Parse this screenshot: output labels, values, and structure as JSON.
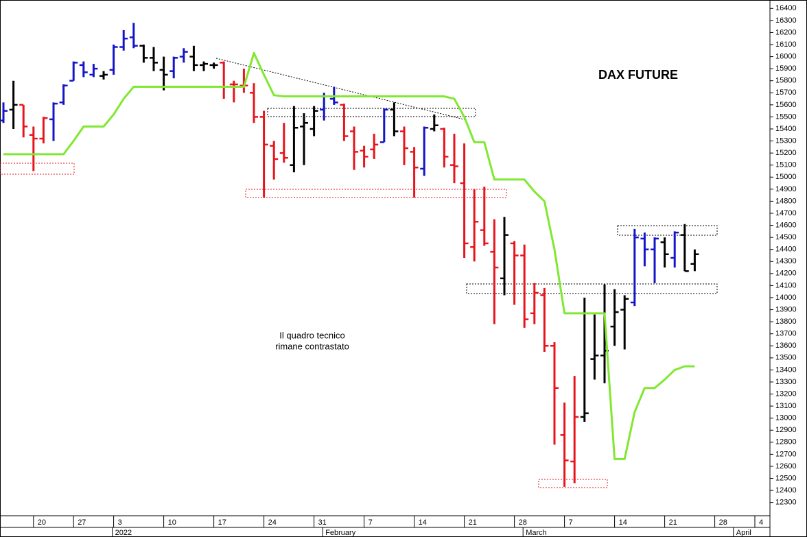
{
  "chart_data": {
    "type": "ohlc",
    "title": "DAX FUTURE",
    "annotation": [
      "Il quadro tecnico",
      "rimane contrastato"
    ],
    "categories": [
      null,
      null,
      null,
      "20",
      null,
      null,
      null,
      "27",
      null,
      null,
      null,
      "3",
      null,
      null,
      null,
      null,
      "10",
      null,
      null,
      null,
      null,
      "17",
      null,
      null,
      null,
      null,
      "24",
      null,
      null,
      null,
      null,
      "31",
      null,
      null,
      null,
      null,
      "7",
      null,
      null,
      null,
      null,
      "14",
      null,
      null,
      null,
      null,
      "21",
      null,
      null,
      null,
      null,
      "28",
      null,
      null,
      null,
      null,
      "7",
      null,
      null,
      null,
      null,
      "14",
      null,
      null,
      null,
      null,
      "21",
      null,
      null,
      null,
      null,
      "28",
      null,
      null,
      null,
      "4"
    ],
    "month_labels": [
      null,
      null,
      null,
      null,
      null,
      null,
      null,
      null,
      null,
      null,
      null,
      "2022",
      null,
      null,
      null,
      null,
      null,
      null,
      null,
      null,
      null,
      null,
      null,
      null,
      null,
      null,
      null,
      null,
      null,
      null,
      null,
      null,
      "February",
      null,
      null,
      null,
      null,
      null,
      null,
      null,
      null,
      null,
      null,
      null,
      null,
      null,
      null,
      null,
      null,
      null,
      null,
      null,
      "March",
      null,
      null,
      null,
      null,
      null,
      null,
      null,
      null,
      null,
      null,
      null,
      null,
      null,
      null,
      null,
      null,
      null,
      null,
      null,
      null,
      "April"
    ],
    "open": [
      15470,
      15560,
      15600,
      15350,
      15320,
      15480,
      15620,
      15800,
      15930,
      15850,
      15840,
      15890,
      16080,
      16160,
      16090,
      15990,
      15890,
      15880,
      16000,
      16000,
      15930,
      15930,
      15950,
      15770,
      15760,
      15700,
      15500,
      15260,
      15200,
      15100,
      15420,
      15400,
      15560,
      15650,
      15600,
      15380,
      15220,
      15230,
      15290,
      15560,
      15380,
      15210,
      15070,
      15400,
      15400,
      15100,
      14950,
      14420,
      14560,
      14380,
      14160,
      14450,
      14350,
      13870,
      14020,
      13600,
      12860,
      12640,
      13010,
      13490,
      13520,
      13760,
      13900,
      13960,
      14490,
      14400,
      14460,
      14330,
      14520,
      14280,
      null,
      null,
      null,
      null,
      null,
      null
    ],
    "high": [
      15620,
      15800,
      15600,
      15420,
      15500,
      15620,
      15770,
      15960,
      15960,
      15940,
      15880,
      16100,
      16220,
      16280,
      16100,
      16080,
      16000,
      16000,
      16070,
      16090,
      15960,
      15950,
      15960,
      15800,
      15900,
      15780,
      15550,
      15300,
      15450,
      15590,
      15530,
      15590,
      15700,
      15750,
      15610,
      15420,
      15260,
      15360,
      15570,
      15620,
      15420,
      15250,
      15420,
      15520,
      15410,
      15360,
      15280,
      14900,
      14920,
      14650,
      14670,
      14470,
      14440,
      14120,
      14080,
      13630,
      13130,
      13350,
      14000,
      13860,
      14110,
      14070,
      14020,
      14570,
      14540,
      14500,
      14500,
      14550,
      14610,
      14400,
      null,
      null,
      null,
      null,
      null,
      null
    ],
    "low": [
      15450,
      15400,
      15330,
      15050,
      15280,
      15300,
      15600,
      15800,
      15830,
      15830,
      15810,
      15850,
      16050,
      16070,
      15950,
      15880,
      15720,
      15820,
      15950,
      15880,
      15880,
      15900,
      15650,
      15620,
      15700,
      15450,
      14830,
      14980,
      15120,
      15040,
      15100,
      15340,
      15470,
      15600,
      15300,
      15060,
      15080,
      15150,
      15290,
      15340,
      15100,
      14830,
      15010,
      15380,
      15080,
      14950,
      14330,
      14300,
      14430,
      13780,
      14020,
      13940,
      13750,
      13780,
      13550,
      12780,
      12430,
      12460,
      12970,
      13320,
      13290,
      13600,
      13570,
      13930,
      14260,
      14120,
      14250,
      14250,
      14220,
      14220,
      null,
      null,
      null,
      null,
      null,
      null
    ],
    "close": [
      15550,
      15600,
      15420,
      15320,
      15490,
      15610,
      15760,
      15950,
      15870,
      15900,
      15850,
      16080,
      16150,
      16090,
      15990,
      15950,
      15850,
      15990,
      16040,
      15930,
      15940,
      15930,
      15750,
      15770,
      15760,
      15500,
      15270,
      15150,
      15160,
      15410,
      15450,
      15550,
      15670,
      15620,
      15340,
      15210,
      15170,
      15270,
      15560,
      15380,
      15240,
      15080,
      15410,
      15430,
      15170,
      15090,
      14450,
      14630,
      14450,
      14250,
      14520,
      14350,
      13820,
      14040,
      13600,
      13250,
      12650,
      13010,
      13040,
      13520,
      13560,
      13880,
      13990,
      14500,
      14400,
      14490,
      14360,
      14540,
      14220,
      14360,
      null,
      null,
      null,
      null,
      null,
      null
    ],
    "bar_colors": [
      "#1414c8",
      "#000000",
      "#e8141c",
      "#e8141c",
      "#e8141c",
      "#1414c8",
      "#1414c8",
      "#1414c8",
      "#1414c8",
      "#1414c8",
      "#000000",
      "#1414c8",
      "#1414c8",
      "#1414c8",
      "#000000",
      "#000000",
      "#000000",
      "#1414c8",
      "#1414c8",
      "#000000",
      "#000000",
      "#000000",
      "#e8141c",
      "#e8141c",
      "#e8141c",
      "#e8141c",
      "#e8141c",
      "#e8141c",
      "#e8141c",
      "#000000",
      "#000000",
      "#000000",
      "#1414c8",
      "#1414c8",
      "#e8141c",
      "#e8141c",
      "#e8141c",
      "#e8141c",
      "#1414c8",
      "#000000",
      "#e8141c",
      "#e8141c",
      "#1414c8",
      "#000000",
      "#e8141c",
      "#e8141c",
      "#e8141c",
      "#e8141c",
      "#e8141c",
      "#e8141c",
      "#000000",
      "#e8141c",
      "#e8141c",
      "#e8141c",
      "#e8141c",
      "#e8141c",
      "#e8141c",
      "#e8141c",
      "#000000",
      "#000000",
      "#000000",
      "#000000",
      "#000000",
      "#1414c8",
      "#1414c8",
      "#1414c8",
      "#000000",
      "#1414c8",
      "#000000",
      "#000000",
      null,
      null,
      null,
      null,
      null,
      null
    ],
    "trail": {
      "color": "#80e830",
      "values": [
        15190,
        15190,
        15190,
        15190,
        15190,
        15190,
        15190,
        15300,
        15420,
        15420,
        15420,
        15520,
        15650,
        15750,
        15750,
        15750,
        15750,
        15750,
        15750,
        15750,
        15750,
        15750,
        15750,
        15750,
        15750,
        16030,
        15850,
        15680,
        15670,
        15670,
        15670,
        15670,
        15670,
        15670,
        15670,
        15670,
        15670,
        15670,
        15670,
        15670,
        15670,
        15670,
        15670,
        15670,
        15670,
        15650,
        15500,
        15290,
        15290,
        14980,
        14980,
        14980,
        14980,
        14880,
        14800,
        14400,
        13870,
        13870,
        13870,
        13870,
        13870,
        12660,
        12660,
        13050,
        13250,
        13250,
        13320,
        13400,
        13430,
        13430,
        null,
        null,
        null,
        null,
        null,
        null
      ]
    },
    "ylim": [
      12190,
      16470
    ],
    "yticks": [
      12300,
      12400,
      12500,
      12600,
      12700,
      12800,
      12900,
      13000,
      13100,
      13200,
      13300,
      13400,
      13500,
      13600,
      13700,
      13800,
      13900,
      14000,
      14100,
      14200,
      14300,
      14400,
      14500,
      14600,
      14700,
      14800,
      14900,
      15000,
      15100,
      15200,
      15300,
      15400,
      15500,
      15600,
      15700,
      15800,
      15900,
      16000,
      16100,
      16200,
      16300,
      16400
    ]
  }
}
